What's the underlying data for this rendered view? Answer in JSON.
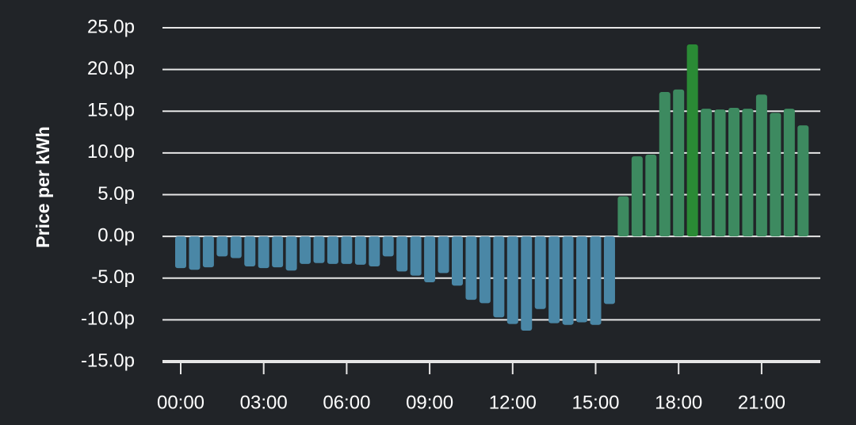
{
  "chart_data": {
    "type": "bar",
    "y_label": "Price per kWh",
    "categories": [
      "00:00",
      null,
      null,
      null,
      null,
      null,
      "03:00",
      null,
      null,
      null,
      null,
      null,
      "06:00",
      null,
      null,
      null,
      null,
      null,
      "09:00",
      null,
      null,
      null,
      null,
      null,
      "12:00",
      null,
      null,
      null,
      null,
      null,
      "15:00",
      null,
      null,
      null,
      null,
      null,
      "18:00",
      null,
      null,
      null,
      null,
      null,
      "21:00",
      null,
      null,
      null
    ],
    "values": [
      -3.8,
      -4.0,
      -3.7,
      -2.4,
      -2.6,
      -3.6,
      -3.8,
      -3.7,
      -4.1,
      -3.3,
      -3.2,
      -3.3,
      -3.3,
      -3.4,
      -3.6,
      -2.4,
      -4.2,
      -4.7,
      -5.5,
      -4.4,
      -5.9,
      -7.6,
      -8.0,
      -9.7,
      -10.5,
      -11.3,
      -8.7,
      -10.4,
      -10.6,
      -10.3,
      -10.6,
      -8.1,
      4.8,
      9.6,
      9.8,
      17.3,
      17.6,
      23.0,
      15.3,
      15.2,
      15.4,
      15.3,
      17.0,
      14.8,
      15.3,
      13.3
    ],
    "color_negative": "#4a87a6",
    "color_positive": "#3d8a60",
    "color_max": "#2a8a35",
    "ylim": [
      -15,
      25
    ],
    "yticks": [
      {
        "value": 25,
        "label": "25.0p"
      },
      {
        "value": 20,
        "label": "20.0p"
      },
      {
        "value": 15,
        "label": "15.0p"
      },
      {
        "value": 10,
        "label": "10.0p"
      },
      {
        "value": 5,
        "label": "5.0p"
      },
      {
        "value": 0,
        "label": "0.0p"
      },
      {
        "value": -5,
        "label": "-5.0p"
      },
      {
        "value": -10,
        "label": "-10.0p"
      },
      {
        "value": -15,
        "label": "-15.0p"
      }
    ],
    "grid": true
  }
}
